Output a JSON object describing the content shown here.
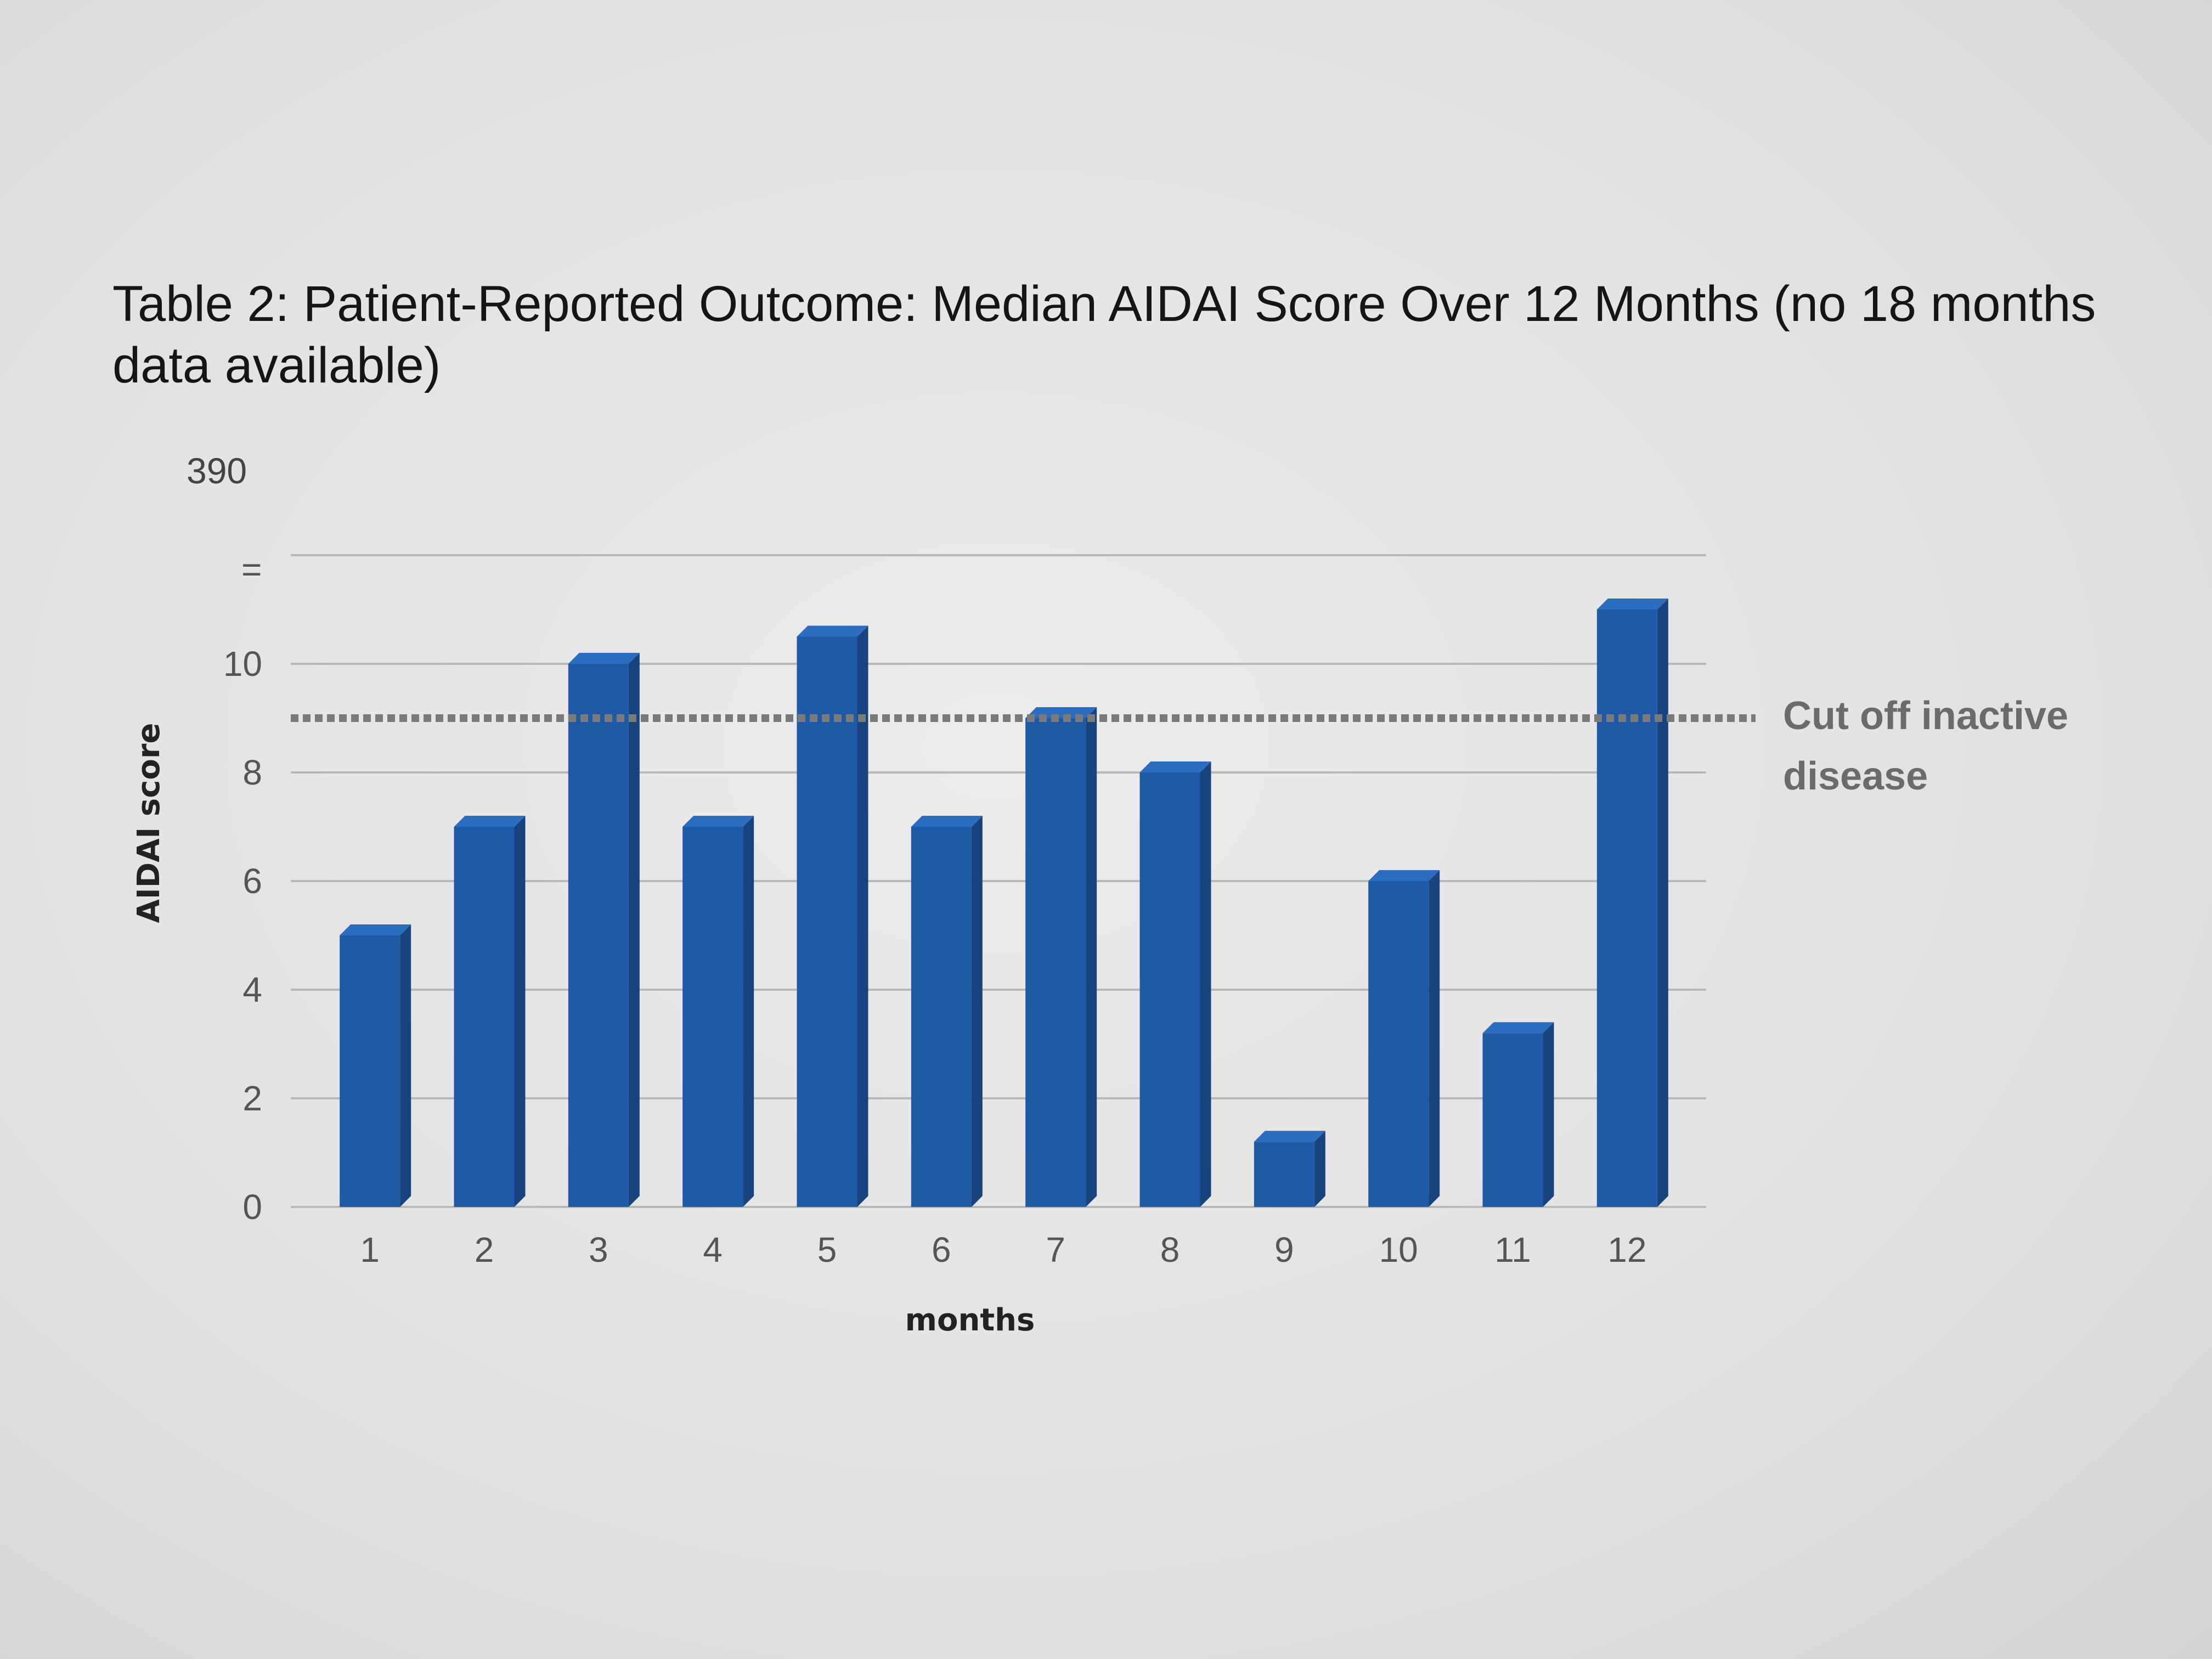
{
  "document": {
    "title": "Table 2: Patient-Reported Outcome: Median AIDAI Score Over 12 Months (no 18 months data available)",
    "page_note": "390"
  },
  "chart_data": {
    "type": "bar",
    "categories": [
      "1",
      "2",
      "3",
      "4",
      "5",
      "6",
      "7",
      "8",
      "9",
      "10",
      "11",
      "12"
    ],
    "values": [
      5,
      7,
      10,
      7,
      10.5,
      7,
      9,
      8,
      1.2,
      6,
      3.2,
      11
    ],
    "xlabel": "months",
    "ylabel": "AIDAI score",
    "ylim": [
      0,
      12
    ],
    "yticks": [
      "0",
      "2",
      "4",
      "6",
      "8",
      "10"
    ],
    "grid": true,
    "bar_color": "#1f5aa6",
    "bar_side_color": "#17447e",
    "bar_top_color": "#2b6dbf",
    "reference_line": {
      "value": 9,
      "style": "dotted",
      "color": "#7a7a7a",
      "label_lines": [
        "Cut off inactive",
        "disease"
      ]
    }
  }
}
